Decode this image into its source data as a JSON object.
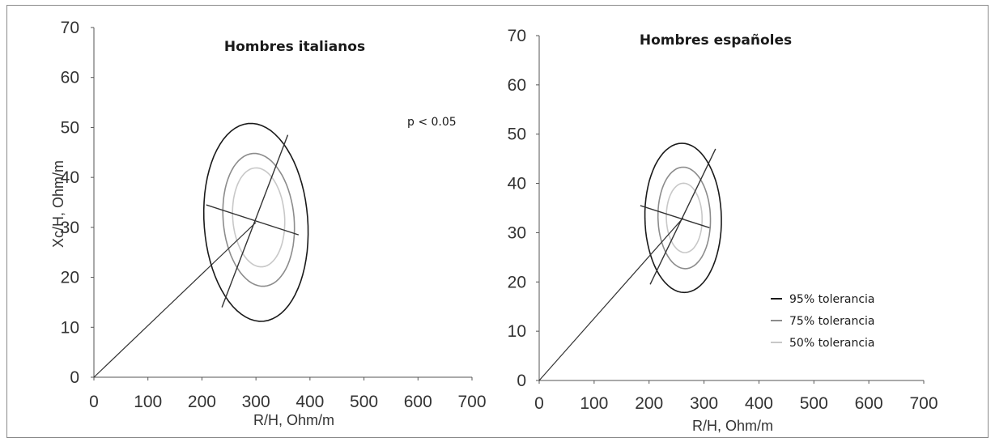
{
  "colors": {
    "ellipse_95": "#1a1a1a",
    "ellipse_75": "#8c8c8c",
    "ellipse_50": "#c8c8c8",
    "axis": "#555555",
    "frame": "#8a8a8a"
  },
  "chart_data": [
    {
      "type": "scatter",
      "title": "Hombres italianos",
      "annotation": "p < 0.05",
      "xlabel": "R/H, Ohm/m",
      "ylabel": "Xc/H, Ohm/m",
      "xlim": [
        0,
        700
      ],
      "ylim": [
        0,
        70
      ],
      "x_ticks": [
        "0",
        "100",
        "200",
        "300",
        "400",
        "500",
        "600",
        "700"
      ],
      "y_ticks": [
        "0",
        "10",
        "20",
        "30",
        "40",
        "50",
        "60",
        "70"
      ],
      "grid": false,
      "center": [
        300,
        31
      ],
      "origin_line": {
        "from": [
          0,
          0
        ],
        "to": [
          300,
          31
        ]
      },
      "major_axis": {
        "from": [
          237,
          14
        ],
        "to": [
          359,
          48.5
        ]
      },
      "minor_axis": {
        "from": [
          208,
          34.5
        ],
        "to": [
          379,
          28.5
        ]
      },
      "ellipses": [
        {
          "level": "95% tolerancia",
          "center": [
            300,
            31
          ],
          "semi_major_dir": [
            0.2,
            1
          ],
          "rx": 90,
          "ry": 18,
          "color": "#1a1a1a"
        },
        {
          "level": "75% tolerancia",
          "center": [
            305,
            31.5
          ],
          "semi_major_dir": [
            0.2,
            1
          ],
          "rx": 62,
          "ry": 12,
          "color": "#8c8c8c"
        },
        {
          "level": "50% tolerancia",
          "center": [
            305,
            32
          ],
          "semi_major_dir": [
            0.2,
            1
          ],
          "rx": 45,
          "ry": 9,
          "color": "#c8c8c8"
        }
      ]
    },
    {
      "type": "scatter",
      "title": "Hombres españoles",
      "xlabel": "R/H, Ohm/m",
      "ylabel": "",
      "xlim": [
        0,
        700
      ],
      "ylim": [
        0,
        70
      ],
      "x_ticks": [
        "0",
        "100",
        "200",
        "300",
        "400",
        "500",
        "600",
        "700"
      ],
      "y_ticks": [
        "0",
        "10",
        "20",
        "30",
        "40",
        "50",
        "60",
        "70"
      ],
      "grid": false,
      "center": [
        262,
        33
      ],
      "origin_line": {
        "from": [
          0,
          0
        ],
        "to": [
          262,
          33
        ]
      },
      "major_axis": {
        "from": [
          202,
          19.5
        ],
        "to": [
          321,
          47
        ]
      },
      "minor_axis": {
        "from": [
          184,
          35.5
        ],
        "to": [
          310,
          31
        ]
      },
      "ellipses": [
        {
          "level": "95% tolerancia",
          "center": [
            262,
            33
          ],
          "semi_major_dir": [
            0.2,
            1
          ],
          "rx": 64,
          "ry": 14,
          "color": "#1a1a1a"
        },
        {
          "level": "75% tolerancia",
          "center": [
            264,
            33
          ],
          "semi_major_dir": [
            0.2,
            1
          ],
          "rx": 44,
          "ry": 9.5,
          "color": "#8c8c8c"
        },
        {
          "level": "50% tolerancia",
          "center": [
            264,
            33
          ],
          "semi_major_dir": [
            0.2,
            1
          ],
          "rx": 30,
          "ry": 6.5,
          "color": "#c8c8c8"
        }
      ],
      "legend": {
        "placement": "bottom-right",
        "entries": [
          {
            "label": "95% tolerancia",
            "color": "#1a1a1a"
          },
          {
            "label": "75% tolerancia",
            "color": "#8c8c8c"
          },
          {
            "label": "50% tolerancia",
            "color": "#c8c8c8"
          }
        ]
      }
    }
  ]
}
